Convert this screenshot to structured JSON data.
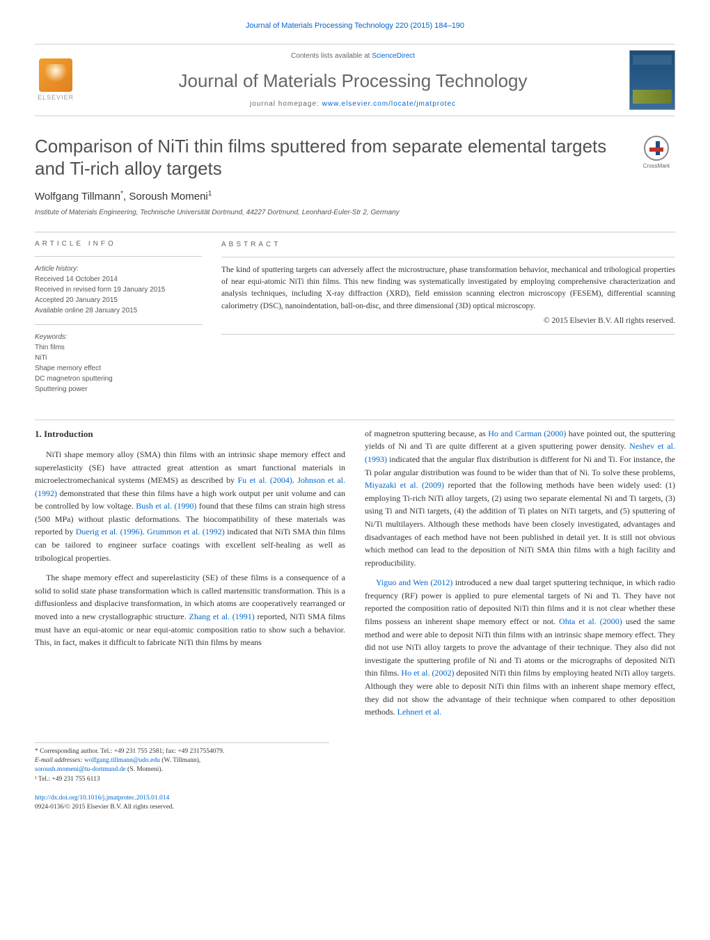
{
  "header": {
    "journal_ref": "Journal of Materials Processing Technology 220 (2015) 184–190",
    "contents_label": "Contents lists available at",
    "contents_link": "ScienceDirect",
    "journal_name": "Journal of Materials Processing Technology",
    "homepage_label": "journal homepage:",
    "homepage_url": "www.elsevier.com/locate/jmatprotec",
    "publisher_label": "ELSEVIER",
    "crossmark_label": "CrossMark"
  },
  "article": {
    "title": "Comparison of NiTi thin films sputtered from separate elemental targets and Ti-rich alloy targets",
    "authors_html": "Wolfgang Tillmann<sup>*</sup>, Soroush Momeni<sup>1</sup>",
    "affiliation": "Institute of Materials Engineering, Technische Universität Dortmund, 44227 Dortmund, Leonhard-Euler-Str 2, Germany"
  },
  "info": {
    "heading": "ARTICLE INFO",
    "history_label": "Article history:",
    "received": "Received 14 October 2014",
    "revised": "Received in revised form 19 January 2015",
    "accepted": "Accepted 20 January 2015",
    "online": "Available online 28 January 2015",
    "keywords_label": "Keywords:",
    "keywords": [
      "Thin films",
      "NiTi",
      "Shape memory effect",
      "DC magnetron sputtering",
      "Sputtering power"
    ]
  },
  "abstract": {
    "heading": "ABSTRACT",
    "text": "The kind of sputtering targets can adversely affect the microstructure, phase transformation behavior, mechanical and tribological properties of near equi-atomic NiTi thin films. This new finding was systematically investigated by employing comprehensive characterization and analysis techniques, including X-ray diffraction (XRD), field emission scanning electron microscopy (FESEM), differential scanning calorimetry (DSC), nanoindentation, ball-on-disc, and three dimensional (3D) optical microscopy.",
    "copyright": "© 2015 Elsevier B.V. All rights reserved."
  },
  "section1": {
    "heading": "1. Introduction",
    "p1_pre": "NiTi shape memory alloy (SMA) thin films with an intrinsic shape memory effect and superelasticity (SE) have attracted great attention as smart functional materials in microelectromechanical systems (MEMS) as described by ",
    "ref1a": "Fu et al. (2004)",
    "p1_mid1": ". ",
    "ref1b": "Johnson et al. (1992)",
    "p1_mid2": " demonstrated that these thin films have a high work output per unit volume and can be controlled by low voltage. ",
    "ref1c": "Bush et al. (1990)",
    "p1_mid3": " found that these films can strain high stress (500 MPa) without plastic deformations. The biocompatibility of these materials was reported by ",
    "ref1d": "Duerig et al. (1996)",
    "p1_mid4": ". ",
    "ref1e": "Grummon et al. (1992)",
    "p1_post": " indicated that NiTi SMA thin films can be tailored to engineer surface coatings with excellent self-healing as well as tribological properties.",
    "p2_pre": "The shape memory effect and superelasticity (SE) of these films is a consequence of a solid to solid state phase transformation which is called martensitic transformation. This is a diffusionless and displacive transformation, in which atoms are cooperatively rearranged or moved into a new crystallographic structure. ",
    "ref2a": "Zhang et al. (1991)",
    "p2_post": " reported, NiTi SMA films must have an equi-atomic or near equi-atomic composition ratio to show such a behavior. This, in fact, makes it difficult to fabricate NiTi thin films by means",
    "p3_pre": "of magnetron sputtering because, as ",
    "ref3a": "Ho and Carman (2000)",
    "p3_mid1": " have pointed out, the sputtering yields of Ni and Ti are quite different at a given sputtering power density. ",
    "ref3b": "Neshev et al. (1993)",
    "p3_mid2": " indicated that the angular flux distribution is different for Ni and Ti. For instance, the Ti polar angular distribution was found to be wider than that of Ni. To solve these problems, ",
    "ref3c": "Miyazaki et al. (2009)",
    "p3_post": " reported that the following methods have been widely used: (1) employing Ti-rich NiTi alloy targets, (2) using two separate elemental Ni and Ti targets, (3) using Ti and NiTi targets, (4) the addition of Ti plates on NiTi targets, and (5) sputtering of Ni/Ti multilayers. Although these methods have been closely investigated, advantages and disadvantages of each method have not been published in detail yet. It is still not obvious which method can lead to the deposition of NiTi SMA thin films with a high facility and reproducibility.",
    "p4_ref1": "Yiguo and Wen (2012)",
    "p4_mid1": " introduced a new dual target sputtering technique, in which radio frequency (RF) power is applied to pure elemental targets of Ni and Ti. They have not reported the composition ratio of deposited NiTi thin films and it is not clear whether these films possess an inherent shape memory effect or not. ",
    "ref4b": "Ohta et al. (2000)",
    "p4_mid2": " used the same method and were able to deposit NiTi thin films with an intrinsic shape memory effect. They did not use NiTi alloy targets to prove the advantage of their technique. They also did not investigate the sputtering profile of Ni and Ti atoms or the micrographs of deposited NiTi thin films. ",
    "ref4c": "Ho et al. (2002)",
    "p4_mid3": " deposited NiTi thin films by employing heated NiTi alloy targets. Although they were able to deposit NiTi thin films with an inherent shape memory effect, they did not show the advantage of their technique when compared to other deposition methods. ",
    "ref4d": "Lehnert et al."
  },
  "footnotes": {
    "corr": "* Corresponding author. Tel.: +49 231 755 2581; fax: +49 2317554079.",
    "email_label": "E-mail addresses:",
    "email1": "wolfgang.tillmann@udo.edu",
    "email1_name": "(W. Tillmann),",
    "email2": "soroush.momeni@tu-dortmund.de",
    "email2_name": "(S. Momeni).",
    "note1": "¹ Tel.: +49 231 755 6113"
  },
  "doi": {
    "url": "http://dx.doi.org/10.1016/j.jmatprotec.2015.01.014",
    "issn_copyright": "0924-0136/© 2015 Elsevier B.V. All rights reserved."
  },
  "colors": {
    "link": "#0066cc",
    "text": "#333333",
    "muted": "#666666",
    "border": "#cccccc",
    "elsevier_orange": "#e08020",
    "cover_blue": "#1a4d7a"
  }
}
